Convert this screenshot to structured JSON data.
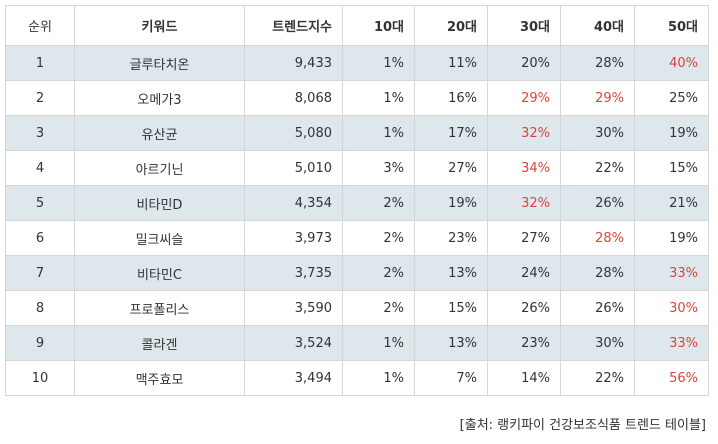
{
  "table": {
    "columns": [
      "순위",
      "키워드",
      "트렌드지수",
      "10대",
      "20대",
      "30대",
      "40대",
      "50대"
    ],
    "highlight_color": "#d9453b",
    "rows": [
      {
        "rank": "1",
        "keyword": "글루타치온",
        "index": "9,433",
        "a10": "1%",
        "a20": "11%",
        "a30": "20%",
        "a40": "28%",
        "a50": "40%",
        "hl": [
          "a50"
        ]
      },
      {
        "rank": "2",
        "keyword": "오메가3",
        "index": "8,068",
        "a10": "1%",
        "a20": "16%",
        "a30": "29%",
        "a40": "29%",
        "a50": "25%",
        "hl": [
          "a30",
          "a40"
        ]
      },
      {
        "rank": "3",
        "keyword": "유산균",
        "index": "5,080",
        "a10": "1%",
        "a20": "17%",
        "a30": "32%",
        "a40": "30%",
        "a50": "19%",
        "hl": [
          "a30"
        ]
      },
      {
        "rank": "4",
        "keyword": "아르기닌",
        "index": "5,010",
        "a10": "3%",
        "a20": "27%",
        "a30": "34%",
        "a40": "22%",
        "a50": "15%",
        "hl": [
          "a30"
        ]
      },
      {
        "rank": "5",
        "keyword": "비타민D",
        "index": "4,354",
        "a10": "2%",
        "a20": "19%",
        "a30": "32%",
        "a40": "26%",
        "a50": "21%",
        "hl": [
          "a30"
        ]
      },
      {
        "rank": "6",
        "keyword": "밀크씨슬",
        "index": "3,973",
        "a10": "2%",
        "a20": "23%",
        "a30": "27%",
        "a40": "28%",
        "a50": "19%",
        "hl": [
          "a40"
        ]
      },
      {
        "rank": "7",
        "keyword": "비타민C",
        "index": "3,735",
        "a10": "2%",
        "a20": "13%",
        "a30": "24%",
        "a40": "28%",
        "a50": "33%",
        "hl": [
          "a50"
        ]
      },
      {
        "rank": "8",
        "keyword": "프로폴리스",
        "index": "3,590",
        "a10": "2%",
        "a20": "15%",
        "a30": "26%",
        "a40": "26%",
        "a50": "30%",
        "hl": [
          "a50"
        ]
      },
      {
        "rank": "9",
        "keyword": "콜라겐",
        "index": "3,524",
        "a10": "1%",
        "a20": "13%",
        "a30": "23%",
        "a40": "30%",
        "a50": "33%",
        "hl": [
          "a50"
        ]
      },
      {
        "rank": "10",
        "keyword": "맥주효모",
        "index": "3,494",
        "a10": "1%",
        "a20": "7%",
        "a30": "14%",
        "a40": "22%",
        "a50": "56%",
        "hl": [
          "a50"
        ]
      }
    ]
  },
  "source_note": "[출처: 랭키파이 건강보조식품 트렌드 테이블]"
}
